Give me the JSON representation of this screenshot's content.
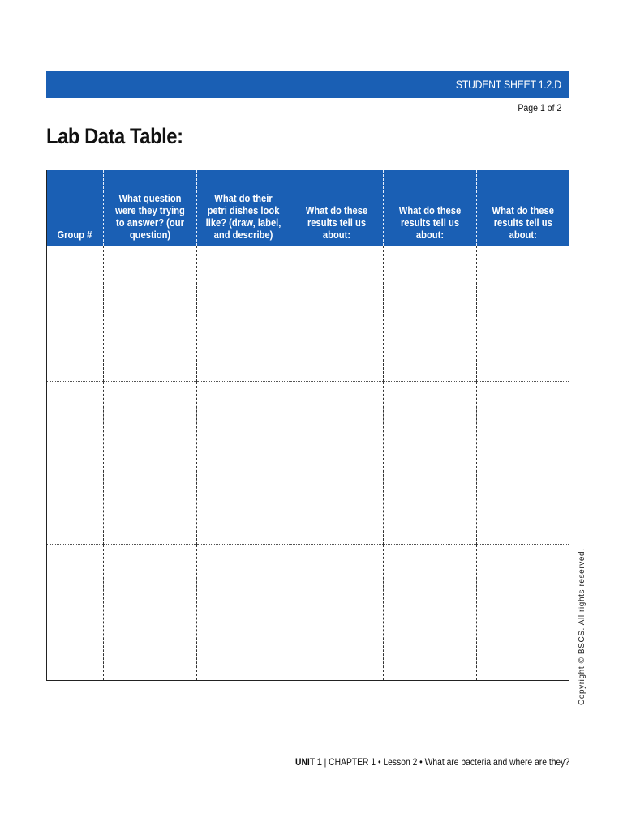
{
  "header": {
    "sheet_label": "STUDENT SHEET 1.2.D",
    "page_label": "Page 1 of 2",
    "accent_color": "#1a5fb4"
  },
  "title": "Lab Data Table:",
  "table": {
    "columns": [
      "Group #",
      "What question were they trying to answer? (our question)",
      "What do their petri dishes look like? (draw, label, and describe)",
      "What do these results tell us about:",
      "What do these results tell us about:",
      "What do these results tell us about:"
    ],
    "row_count": 3
  },
  "side_note": "Copyright © BSCS. All rights reserved.",
  "footer": {
    "unit": "UNIT 1",
    "separator": "|",
    "rest": "CHAPTER 1 • Lesson 2 • What are bacteria and where are they?"
  }
}
